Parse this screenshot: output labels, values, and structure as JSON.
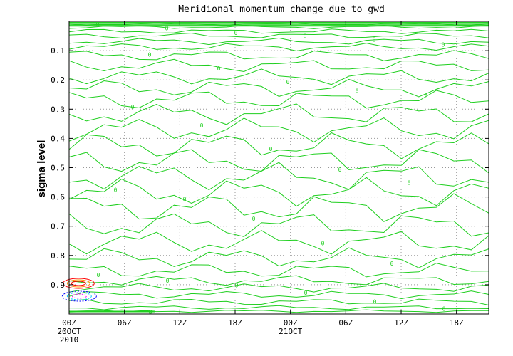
{
  "chart_data": {
    "type": "contour",
    "title": "Meridional momentum change due to gwd",
    "ylabel": "sigma level",
    "ylim": [
      1.0,
      0.0
    ],
    "y_ticks": [
      0.1,
      0.2,
      0.3,
      0.4,
      0.5,
      0.6,
      0.7,
      0.8,
      0.9
    ],
    "x_ticks": [
      {
        "t": 0,
        "label": "00Z",
        "sub1": "20OCT",
        "sub2": "2010"
      },
      {
        "t": 6,
        "label": "06Z",
        "sub1": "",
        "sub2": ""
      },
      {
        "t": 12,
        "label": "12Z",
        "sub1": "",
        "sub2": ""
      },
      {
        "t": 18,
        "label": "18Z",
        "sub1": "",
        "sub2": ""
      },
      {
        "t": 24,
        "label": "00Z",
        "sub1": "21OCT",
        "sub2": ""
      },
      {
        "t": 30,
        "label": "06Z",
        "sub1": "",
        "sub2": ""
      },
      {
        "t": 36,
        "label": "12Z",
        "sub1": "",
        "sub2": ""
      },
      {
        "t": 42,
        "label": "18Z",
        "sub1": "",
        "sub2": ""
      }
    ],
    "xlim": [
      0,
      45.5
    ],
    "grid": true,
    "contour_level_label": "0",
    "contour_color": "#1fcf1f",
    "anomaly_colors": [
      "#ff0000",
      "#ff8c00",
      "#0000ff",
      "#00c8ff",
      "#ff00ff"
    ]
  }
}
